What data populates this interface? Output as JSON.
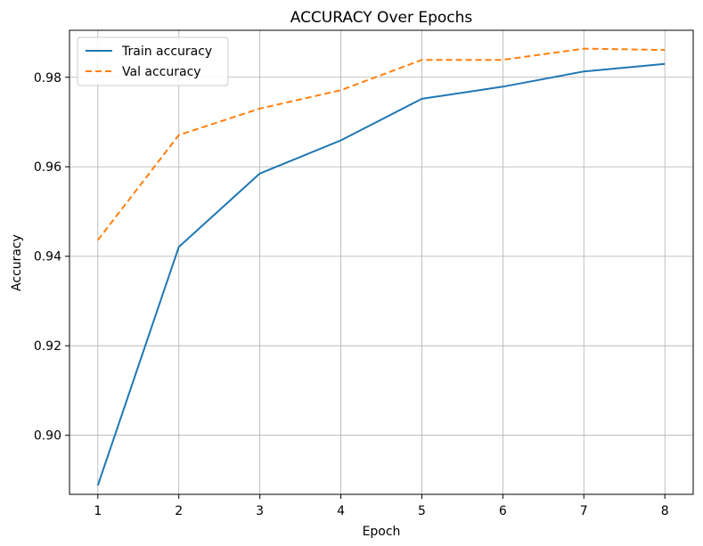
{
  "chart_data": {
    "type": "line",
    "title": "ACCURACY Over Epochs",
    "xlabel": "Epoch",
    "ylabel": "Accuracy",
    "x": [
      1,
      2,
      3,
      4,
      5,
      6,
      7,
      8
    ],
    "xlim": [
      0.65,
      8.35
    ],
    "ylim": [
      0.8868,
      0.9905
    ],
    "xticks": [
      1,
      2,
      3,
      4,
      5,
      6,
      7,
      8
    ],
    "xtick_labels": [
      "1",
      "2",
      "3",
      "4",
      "5",
      "6",
      "7",
      "8"
    ],
    "yticks": [
      0.9,
      0.92,
      0.94,
      0.96,
      0.98
    ],
    "ytick_labels": [
      "0.90",
      "0.92",
      "0.94",
      "0.96",
      "0.98"
    ],
    "grid": true,
    "legend_position": "top-left",
    "series": [
      {
        "name": "Train accuracy",
        "color": "#1f77b4",
        "linestyle": "solid",
        "values": [
          0.8888,
          0.9421,
          0.9585,
          0.9659,
          0.9752,
          0.9779,
          0.9813,
          0.983
        ]
      },
      {
        "name": "Val accuracy",
        "color": "#ff7f0e",
        "linestyle": "dashed",
        "values": [
          0.9436,
          0.9671,
          0.973,
          0.9771,
          0.9839,
          0.9839,
          0.9864,
          0.9861
        ]
      }
    ]
  }
}
